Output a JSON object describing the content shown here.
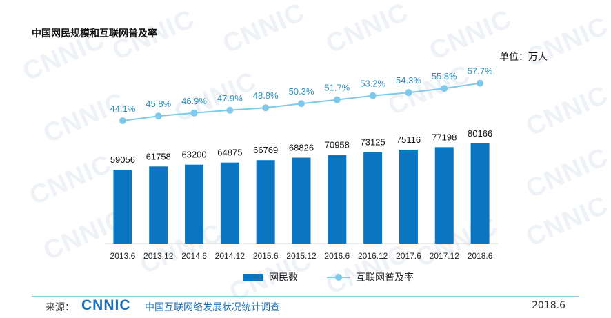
{
  "header": {
    "title": "中国网民规模和互联网普及率",
    "unit": "单位：万人"
  },
  "watermark": "CNNIC",
  "chart_data": {
    "type": "bar",
    "categories": [
      "2013.6",
      "2013.12",
      "2014.6",
      "2014.12",
      "2015.6",
      "2015.12",
      "2016.6",
      "2016.12",
      "2017.6",
      "2017.12",
      "2018.6"
    ],
    "series": [
      {
        "name": "网民数",
        "type": "bar",
        "values": [
          59056,
          61758,
          63200,
          64875,
          66769,
          68826,
          70958,
          73125,
          75116,
          77198,
          80166
        ],
        "color": "#0a76c1"
      },
      {
        "name": "互联网普及率",
        "type": "line",
        "values": [
          44.1,
          45.8,
          46.9,
          47.9,
          48.8,
          50.3,
          51.7,
          53.2,
          54.3,
          55.8,
          57.7
        ],
        "value_suffix": "%",
        "color": "#7ec9ea"
      }
    ],
    "legend": "bottom",
    "grid": false
  },
  "footer": {
    "source_label": "来源：",
    "logo_text": "CNNIC",
    "source_name": "中国互联网络发展状况统计调查",
    "date": "2018.6"
  }
}
